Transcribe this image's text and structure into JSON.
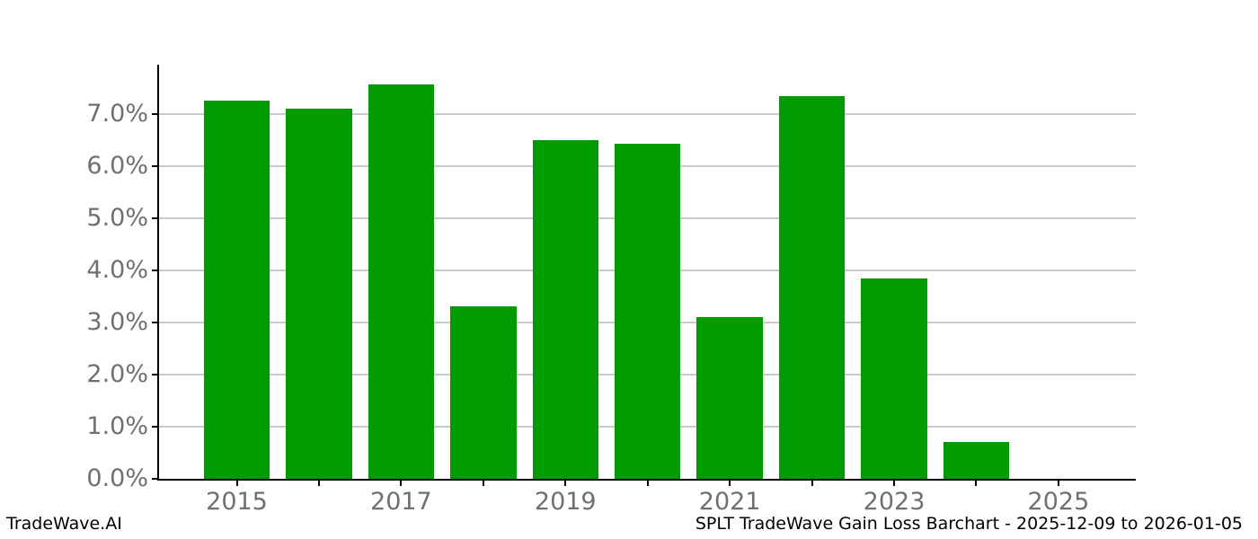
{
  "footer": {
    "brand": "TradeWave.AI",
    "title": "SPLT TradeWave Gain Loss Barchart - 2025-12-09 to 2026-01-05"
  },
  "chart_data": {
    "type": "bar",
    "title": "SPLT TradeWave Gain Loss Barchart - 2025-12-09 to 2026-01-05",
    "categories": [
      "2015",
      "2016",
      "2017",
      "2018",
      "2019",
      "2020",
      "2021",
      "2022",
      "2023",
      "2024",
      "2025"
    ],
    "values": [
      7.26,
      7.1,
      7.57,
      3.31,
      6.5,
      6.44,
      3.1,
      7.35,
      3.84,
      0.71,
      0.0
    ],
    "unit": "%",
    "xlabel": "",
    "ylabel": "",
    "ylim": [
      0,
      7.95
    ],
    "yticks": [
      0,
      1,
      2,
      3,
      4,
      5,
      6,
      7
    ],
    "ytick_labels": [
      "0.0%",
      "1.0%",
      "2.0%",
      "3.0%",
      "4.0%",
      "5.0%",
      "6.0%",
      "7.0%"
    ],
    "xtick_labels_visible": [
      "2015",
      "2017",
      "2019",
      "2021",
      "2023",
      "2025"
    ],
    "grid": "horizontal",
    "legend_position": "none",
    "bar_color": "#009b00",
    "grid_color": "#c9c9c9",
    "axis_color": "#000000",
    "tick_label_color": "#707070",
    "background": "#ffffff"
  }
}
